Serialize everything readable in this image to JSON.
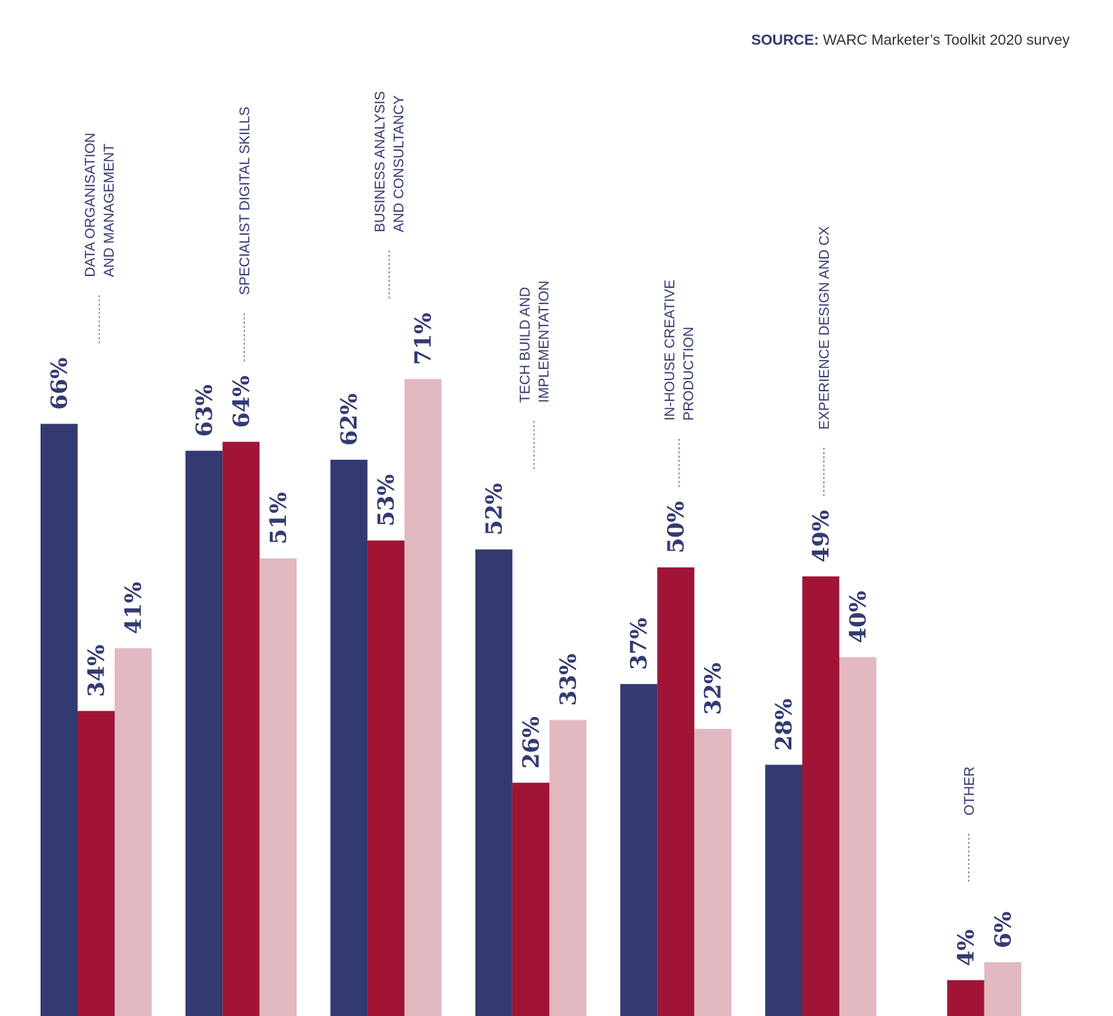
{
  "source": {
    "lead": "SOURCE:",
    "text": "WARC Marketer’s Toolkit 2020 survey"
  },
  "colors": {
    "series1": "#333a72",
    "series2": "#a01536",
    "series3": "#e2b8c1",
    "label": "#333a72"
  },
  "chart_data": {
    "type": "bar",
    "categories": [
      [
        "DATA ORGANISATION",
        "AND MANAGEMENT"
      ],
      [
        "SPECIALIST DIGITAL SKILLS"
      ],
      [
        "BUSINESS ANALYSIS",
        "AND CONSULTANCY"
      ],
      [
        "TECH BUILD AND",
        "IMPLEMENTATION"
      ],
      [
        "IN-HOUSE CREATIVE",
        "PRODUCTION"
      ],
      [
        "EXPERIENCE DESIGN AND CX"
      ],
      [
        "OTHER"
      ]
    ],
    "series": [
      {
        "values": [
          66,
          63,
          62,
          52,
          37,
          28,
          null
        ]
      },
      {
        "values": [
          34,
          64,
          53,
          26,
          50,
          49,
          4
        ]
      },
      {
        "values": [
          41,
          51,
          71,
          33,
          32,
          40,
          6
        ]
      }
    ],
    "value_suffix": "%",
    "ylim": [
      0,
      100
    ],
    "grid": false,
    "legend": "none"
  }
}
